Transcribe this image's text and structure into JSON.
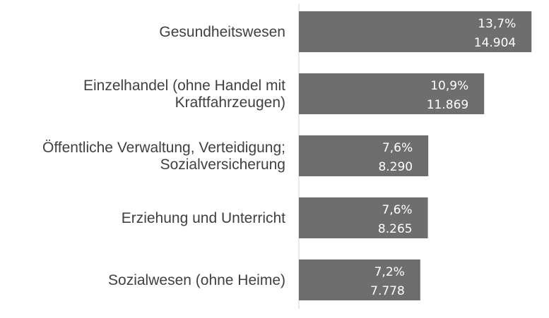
{
  "chart_data": {
    "type": "bar",
    "orientation": "horizontal",
    "categories": [
      [
        "Gesundheitswesen"
      ],
      [
        "Einzelhandel (ohne Handel mit",
        "Kraftfahrzeugen)"
      ],
      [
        "Öffentliche Verwaltung, Verteidigung;",
        "Sozialversicherung"
      ],
      [
        "Erziehung und Unterricht"
      ],
      [
        "Sozialwesen (ohne Heime)"
      ]
    ],
    "values": [
      14904,
      11869,
      8290,
      8265,
      7778
    ],
    "value_labels": [
      "14.904",
      "11.869",
      "8.290",
      "8.265",
      "7.778"
    ],
    "percent_labels": [
      "13,7%",
      "10,9%",
      "7,6%",
      "7,6%",
      "7,2%"
    ],
    "title": "",
    "xlabel": "",
    "ylabel": "",
    "xlim": [
      0,
      15300
    ],
    "grid": false,
    "legend": "none",
    "colors": {
      "bar": "#6e6e6e",
      "axis": "#d0d0d0",
      "category_text": "#404040",
      "bar_text": "#ffffff"
    }
  }
}
